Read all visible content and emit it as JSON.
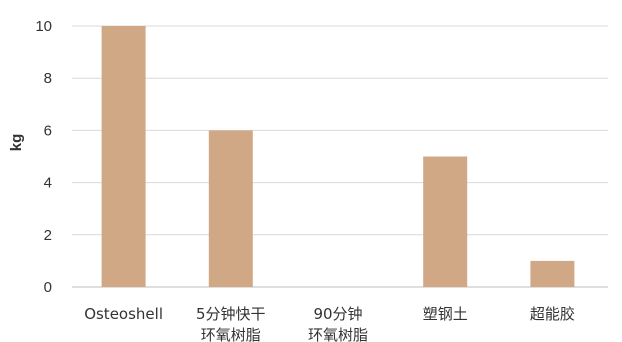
{
  "chart_data": {
    "type": "bar",
    "title": "",
    "xlabel": "",
    "ylabel": "kg",
    "ylim": [
      0,
      10
    ],
    "yticks": [
      0,
      2,
      4,
      6,
      8,
      10
    ],
    "grid": true,
    "bar_color": "#d0a886",
    "categories": [
      [
        "Osteoshell"
      ],
      [
        "5分钟快干",
        "环氧树脂"
      ],
      [
        "90分钟",
        "环氧树脂"
      ],
      [
        "塑钢土"
      ],
      [
        "超能胶"
      ]
    ],
    "values": [
      10,
      6,
      0,
      5,
      1
    ]
  }
}
